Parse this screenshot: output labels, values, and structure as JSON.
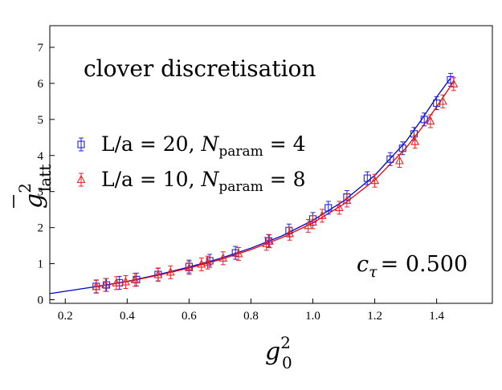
{
  "chart_data": {
    "type": "scatter",
    "xlabel": {
      "base": "g",
      "sup": "2",
      "sub": "0"
    },
    "ylabel": {
      "base": "g",
      "sup": "2",
      "sub": "latt",
      "overline": true
    },
    "annotation": "clover discretisation",
    "ctau": {
      "symbol": "c",
      "sub": "τ",
      "value": "= 0.500"
    },
    "xlim": [
      0.15,
      1.58
    ],
    "ylim": [
      -0.1,
      7.6
    ],
    "x_ticks": [
      "0.2",
      "0.4",
      "0.6",
      "0.8",
      "1.0",
      "1.2",
      "1.4"
    ],
    "y_ticks": [
      "0",
      "1",
      "2",
      "3",
      "4",
      "5",
      "6",
      "7"
    ],
    "grid": false,
    "legend_position": "left",
    "series": [
      {
        "name": "L/a = 20",
        "name_parts": [
          "L/a = 20, ",
          "N",
          "param",
          " = 4"
        ],
        "marker": "square",
        "color": "#2222dd",
        "points": [
          [
            0.3,
            0.37
          ],
          [
            0.333,
            0.41
          ],
          [
            0.375,
            0.47
          ],
          [
            0.43,
            0.56
          ],
          [
            0.5,
            0.7
          ],
          [
            0.6,
            0.92
          ],
          [
            0.667,
            1.08
          ],
          [
            0.75,
            1.3
          ],
          [
            0.857,
            1.63
          ],
          [
            0.923,
            1.92
          ],
          [
            1.0,
            2.24
          ],
          [
            1.05,
            2.55
          ],
          [
            1.11,
            2.85
          ],
          [
            1.176,
            3.37
          ],
          [
            1.25,
            3.9
          ],
          [
            1.29,
            4.2
          ],
          [
            1.327,
            4.6
          ],
          [
            1.36,
            5.0
          ],
          [
            1.4,
            5.45
          ],
          [
            1.445,
            6.1
          ]
        ]
      },
      {
        "name": "L/a = 10",
        "name_parts": [
          "L/a = 10, ",
          "N",
          "param",
          " = 8"
        ],
        "marker": "triangle",
        "color": "#ee2222",
        "points": [
          [
            0.3,
            0.36
          ],
          [
            0.33,
            0.41
          ],
          [
            0.365,
            0.46
          ],
          [
            0.395,
            0.49
          ],
          [
            0.425,
            0.55
          ],
          [
            0.5,
            0.69
          ],
          [
            0.54,
            0.76
          ],
          [
            0.6,
            0.88
          ],
          [
            0.64,
            0.98
          ],
          [
            0.66,
            1.03
          ],
          [
            0.71,
            1.15
          ],
          [
            0.76,
            1.27
          ],
          [
            0.85,
            1.55
          ],
          [
            0.86,
            1.62
          ],
          [
            0.925,
            1.83
          ],
          [
            0.985,
            2.05
          ],
          [
            1.0,
            2.15
          ],
          [
            1.03,
            2.33
          ],
          [
            1.085,
            2.55
          ],
          [
            1.11,
            2.75
          ],
          [
            1.2,
            3.3
          ],
          [
            1.28,
            3.85
          ],
          [
            1.33,
            4.38
          ],
          [
            1.38,
            4.95
          ],
          [
            1.42,
            5.5
          ],
          [
            1.455,
            5.98
          ]
        ]
      }
    ],
    "fits": [
      {
        "color": "#0000cc",
        "points": [
          [
            0.15,
            0.17
          ],
          [
            0.3,
            0.365
          ],
          [
            0.4,
            0.51
          ],
          [
            0.5,
            0.695
          ],
          [
            0.6,
            0.905
          ],
          [
            0.7,
            1.145
          ],
          [
            0.8,
            1.43
          ],
          [
            0.9,
            1.77
          ],
          [
            1.0,
            2.2
          ],
          [
            1.1,
            2.74
          ],
          [
            1.2,
            3.45
          ],
          [
            1.3,
            4.38
          ],
          [
            1.35,
            4.98
          ],
          [
            1.4,
            5.62
          ],
          [
            1.445,
            6.15
          ]
        ]
      },
      {
        "color": "#ee0000",
        "points": [
          [
            0.3,
            0.36
          ],
          [
            0.4,
            0.5
          ],
          [
            0.5,
            0.68
          ],
          [
            0.6,
            0.88
          ],
          [
            0.7,
            1.11
          ],
          [
            0.8,
            1.39
          ],
          [
            0.9,
            1.72
          ],
          [
            1.0,
            2.13
          ],
          [
            1.1,
            2.65
          ],
          [
            1.2,
            3.32
          ],
          [
            1.3,
            4.2
          ],
          [
            1.35,
            4.75
          ],
          [
            1.4,
            5.35
          ],
          [
            1.455,
            6.05
          ]
        ]
      }
    ]
  }
}
